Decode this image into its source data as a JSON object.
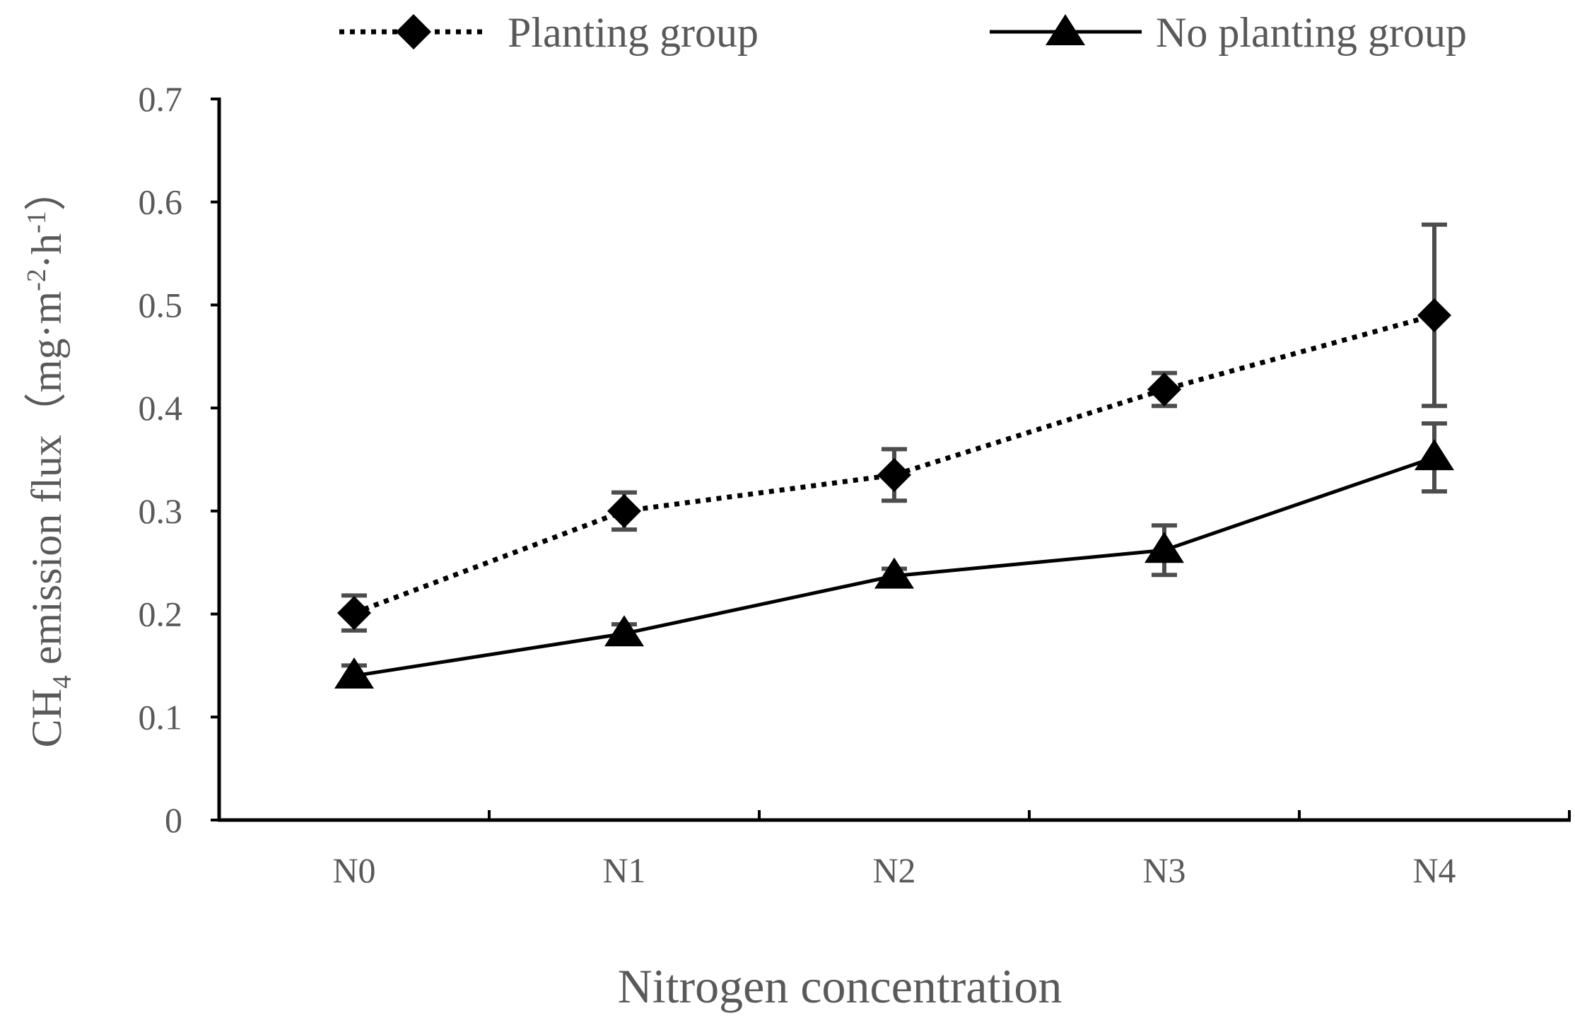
{
  "chart_data": {
    "type": "line",
    "title": "",
    "categories": [
      "N0",
      "N1",
      "N2",
      "N3",
      "N4"
    ],
    "xlabel": "Nitrogen concentration",
    "ylabel": {
      "prefix": "CH",
      "subscript": "4",
      "main": " emission flux（mg·m",
      "sup1": "-2",
      "mid": "·h",
      "sup2": "-1",
      "suffix": "）"
    },
    "ylim": [
      0,
      0.7
    ],
    "yticks": [
      "0",
      "0.1",
      "0.2",
      "0.3",
      "0.4",
      "0.5",
      "0.6",
      "0.7"
    ],
    "ytick_values": [
      0,
      0.1,
      0.2,
      0.3,
      0.4,
      0.5,
      0.6,
      0.7
    ],
    "legend_position": "top",
    "series": [
      {
        "name": "Planting group",
        "marker": "diamond",
        "line": "dotted",
        "values": [
          0.201,
          0.3,
          0.335,
          0.418,
          0.49
        ],
        "errors": [
          0.017,
          0.018,
          0.025,
          0.016,
          0.088
        ]
      },
      {
        "name": "No planting group",
        "marker": "triangle",
        "line": "solid",
        "values": [
          0.14,
          0.181,
          0.237,
          0.262,
          0.352
        ],
        "errors": [
          0.01,
          0.009,
          0.007,
          0.024,
          0.033
        ]
      }
    ],
    "colors": {
      "axis": "#000000",
      "text": "#595959",
      "errorbar": "#4d4d4d",
      "series": "#000000"
    }
  }
}
